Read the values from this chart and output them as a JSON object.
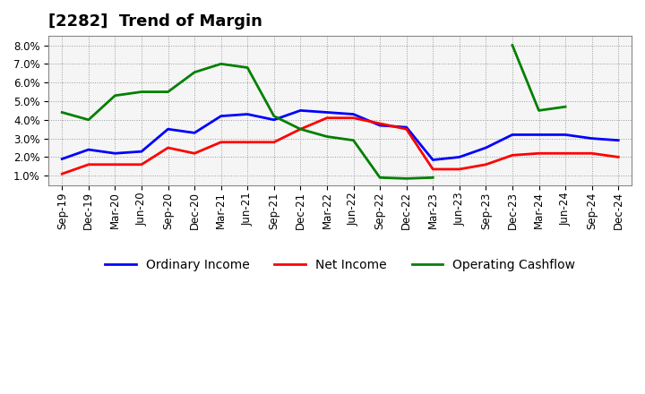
{
  "title": "[2282]  Trend of Margin",
  "x_labels": [
    "Sep-19",
    "Dec-19",
    "Mar-20",
    "Jun-20",
    "Sep-20",
    "Dec-20",
    "Mar-21",
    "Jun-21",
    "Sep-21",
    "Dec-21",
    "Mar-22",
    "Jun-22",
    "Sep-22",
    "Dec-22",
    "Mar-23",
    "Jun-23",
    "Sep-23",
    "Dec-23",
    "Mar-24",
    "Jun-24",
    "Sep-24",
    "Dec-24"
  ],
  "ordinary_income": [
    1.9,
    2.4,
    2.2,
    2.3,
    3.5,
    3.3,
    4.2,
    4.3,
    4.0,
    4.5,
    4.4,
    4.3,
    3.7,
    3.6,
    1.85,
    2.0,
    2.5,
    3.2,
    3.2,
    3.2,
    3.0,
    2.9
  ],
  "net_income": [
    1.1,
    1.6,
    1.6,
    1.6,
    2.5,
    2.2,
    2.8,
    2.8,
    2.8,
    3.5,
    4.1,
    4.1,
    3.8,
    3.5,
    1.35,
    1.35,
    1.6,
    2.1,
    2.2,
    2.2,
    2.2,
    2.0
  ],
  "operating_cashflow": [
    4.4,
    4.0,
    5.3,
    5.5,
    5.5,
    6.55,
    7.0,
    6.8,
    4.2,
    3.5,
    3.1,
    2.9,
    0.9,
    0.85,
    0.9,
    null,
    null,
    8.0,
    4.5,
    4.7,
    null,
    null
  ],
  "ylim": [
    0.5,
    8.5
  ],
  "yticks": [
    1.0,
    2.0,
    3.0,
    4.0,
    5.0,
    6.0,
    7.0,
    8.0
  ],
  "line_color_ordinary": "#0000ff",
  "line_color_net": "#ff0000",
  "line_color_cashflow": "#008000",
  "background_color": "#ffffff",
  "plot_bg_color": "#f5f5f5",
  "grid_color": "#999999",
  "legend_labels": [
    "Ordinary Income",
    "Net Income",
    "Operating Cashflow"
  ],
  "title_fontsize": 13,
  "tick_fontsize": 8.5,
  "legend_fontsize": 10
}
